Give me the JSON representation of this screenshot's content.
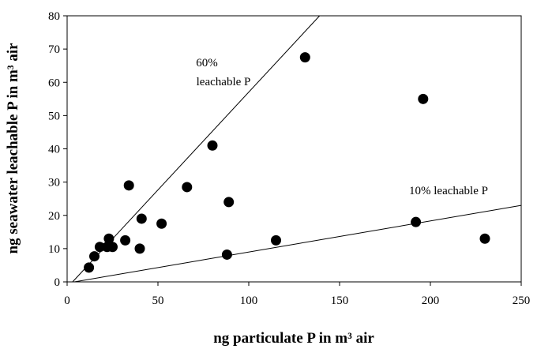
{
  "chart_data": {
    "type": "scatter",
    "x_label": "ng particulate P in m³ air",
    "y_label": "ng seawater leachable P in m³ air",
    "annotations": [
      "60%",
      "leachable P",
      "10% leachable P"
    ],
    "x": [
      12,
      15,
      18,
      22,
      23,
      25,
      32,
      34,
      40,
      41,
      52,
      66,
      80,
      88,
      89,
      115,
      131,
      192,
      196,
      230
    ],
    "values": [
      4.3,
      7.7,
      10.5,
      10.5,
      13,
      10.5,
      12.5,
      29,
      10,
      19,
      17.5,
      28.5,
      41,
      8.2,
      24,
      12.5,
      67.5,
      18,
      55,
      13
    ],
    "color": "#000000",
    "reference_lines": [
      {
        "x": [
          3,
          139
        ],
        "y": [
          0,
          80
        ]
      },
      {
        "x": [
          4,
          250
        ],
        "y": [
          0,
          23
        ]
      }
    ],
    "xlim": [
      0,
      250
    ],
    "ylim": [
      0,
      80
    ],
    "xticks": [
      0,
      50,
      100,
      150,
      200,
      250
    ],
    "yticks": [
      0,
      10,
      20,
      30,
      40,
      50,
      60,
      70,
      80
    ],
    "grid": false
  }
}
